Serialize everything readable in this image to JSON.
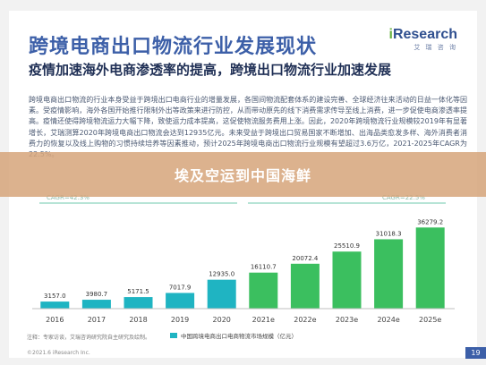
{
  "header": {
    "title": "跨境电商出口物流行业发展现状",
    "logo_text": "iResearch",
    "logo_sub": "艾 瑞 咨 询"
  },
  "subtitle": "疫情加速海外电商渗透率的提高，跨境出口物流行业加速发展",
  "body_text": "跨境电商出口物流的行业本身受益于跨境出口电商行业的增量发展，各国间物流配套体系的建设完善、全球经济往来活动的日益一体化等因素。受疫情影响，海外各国开始推行限制外出等政策来进行防控，从而带动原先的线下消费需求传导至线上消费，进一步促使电商渗透率提高。疫情还使得跨境物流运力大幅下降，致使运力成本提高，这促使物流服务费用上涨。因此，2020年跨境物流行业规模较2019年有显著增长，艾瑞测算2020年跨境电商出口物流会达到12935亿元。未来受益于跨境出口贸易国家不断增加、出海品类愈发多样、海外消费者消费力的恢复以及线上购物的习惯持续培养等因素推动，预计2025年跨境电商出口物流行业规模有望超过3.6万亿，2021-2025年CAGR为22.5%。",
  "banner": "埃及空运到中国海鲜",
  "footer": {
    "source": "注释：专家访谈，艾瑞咨询研究院自主研究及绘制。",
    "copyright": "©2021.6 iResearch Inc.",
    "page": "19"
  },
  "chart_data": {
    "type": "bar",
    "categories": [
      "2016",
      "2017",
      "2018",
      "2019",
      "2020",
      "2021e",
      "2022e",
      "2023e",
      "2024e",
      "2025e"
    ],
    "values": [
      3157.0,
      3980.7,
      5171.5,
      7017.9,
      12935.0,
      16110.7,
      20072.4,
      25510.9,
      31018.3,
      36279.2
    ],
    "value_labels": [
      "3157.0",
      "3980.7",
      "5171.5",
      "7017.9",
      "12935.0",
      "16110.7",
      "20072.4",
      "25510.9",
      "31018.3",
      "36279.2"
    ],
    "series": [
      {
        "name": "中国跨境电商出口电商物流市场规模（亿元）",
        "values": [
          3157.0,
          3980.7,
          5171.5,
          7017.9,
          12935.0,
          16110.7,
          20072.4,
          25510.9,
          31018.3,
          36279.2
        ]
      }
    ],
    "cagr_labels": [
      "CAGR=42.3%",
      "CAGR=22.5%"
    ],
    "ylim": [
      0,
      40000
    ],
    "grid": false,
    "legend_position": "bottom",
    "colors": {
      "historical": "#1fb4c2",
      "forecast": "#3bbf5f",
      "cagr": "#9fdcc8"
    }
  }
}
